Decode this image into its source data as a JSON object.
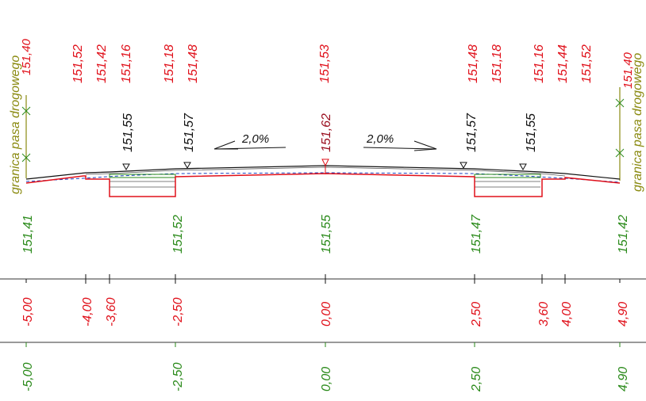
{
  "colors": {
    "red": "#e0101a",
    "green": "#2a8a1a",
    "olive": "#8a8a10",
    "black": "#111111",
    "darkred": "#9a1020",
    "blue": "#1a40c0"
  },
  "boundary_label": "granica pasa drogowego",
  "boundary_left_value": "151,40",
  "boundary_right_value": "151,40",
  "top_red_labels": [
    "151,52",
    "151,42",
    "151,16",
    "151,18",
    "151,48",
    "151,53",
    "151,48",
    "151,18",
    "151,16",
    "151,44",
    "151,52"
  ],
  "design_black_labels": [
    "151,55",
    "151,57",
    "151,62",
    "151,57",
    "151,55"
  ],
  "slopes": {
    "left": "2,0%",
    "right": "2,0%"
  },
  "ground_labels": [
    "151,41",
    "151,52",
    "151,55",
    "151,47",
    "151,42"
  ],
  "offsets_red": [
    "-5,00",
    "-4,00",
    "-3,60",
    "-2,50",
    "0,00",
    "2,50",
    "3,60",
    "4,00",
    "4,90"
  ],
  "offsets_green": [
    "-5,00",
    "-2,50",
    "0,00",
    "2,50",
    "4,90"
  ]
}
